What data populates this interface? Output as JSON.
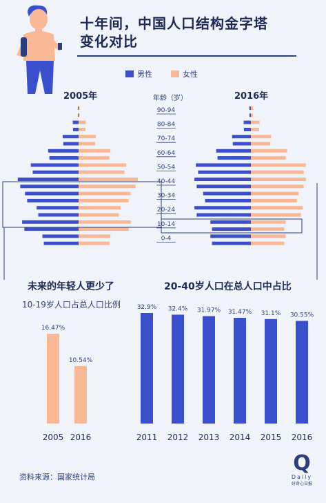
{
  "header": {
    "title_line1": "十年间，中国人口结构金字塔",
    "title_line2": "变化对比"
  },
  "legend": {
    "male": "男性",
    "female": "女性"
  },
  "colors": {
    "male": "#3a4fcb",
    "female": "#f8b896",
    "text": "#1d2a55",
    "background": "#f0f3fa"
  },
  "pyramid": {
    "left_year": "2005年",
    "right_year": "2016年",
    "age_header": "年龄（岁）"
  },
  "chart_data": [
    {
      "type": "bar",
      "orientation": "horizontal",
      "title": "2005年",
      "categories": [
        "90-94",
        "80-84",
        "70-74",
        "60-64",
        "50-54",
        "40-44",
        "30-34",
        "20-24",
        "10-14",
        "0-4"
      ],
      "series": [
        {
          "name": "男性",
          "values": [
            0.05,
            0.4,
            1.1,
            2.1,
            3.3,
            4.2,
            3.7,
            2.9,
            3.9,
            2.5
          ]
        },
        {
          "name": "女性",
          "values": [
            0.08,
            0.5,
            1.2,
            2.2,
            3.3,
            4.1,
            3.6,
            2.9,
            3.6,
            2.2
          ]
        }
      ]
    },
    {
      "type": "bar",
      "orientation": "horizontal",
      "title": "2016年",
      "categories": [
        "90-94",
        "80-84",
        "70-74",
        "60-64",
        "50-54",
        "40-44",
        "30-34",
        "20-24",
        "10-14",
        "0-4"
      ],
      "series": [
        {
          "name": "男性",
          "values": [
            0.1,
            0.5,
            1.3,
            2.4,
            3.8,
            3.9,
            3.3,
            3.9,
            2.8,
            2.8
          ]
        },
        {
          "name": "女性",
          "values": [
            0.15,
            0.6,
            1.4,
            2.5,
            3.8,
            3.8,
            3.3,
            3.6,
            2.4,
            2.4
          ]
        }
      ]
    },
    {
      "type": "bar",
      "title": "未来的年轻人更少了",
      "subtitle": "10-19岁人口占总人口比例",
      "categories": [
        "2005",
        "2016"
      ],
      "values": [
        16.47,
        10.54
      ],
      "value_labels": [
        "16.47%",
        "10.54%"
      ]
    },
    {
      "type": "bar",
      "title": "20-40岁人口在总人口中占比",
      "categories": [
        "2011",
        "2012",
        "2013",
        "2014",
        "2015",
        "2016"
      ],
      "values": [
        32.9,
        32.4,
        31.97,
        31.47,
        31.1,
        30.55
      ],
      "value_labels": [
        "32.9%",
        "32.4%",
        "31.97%",
        "31.47%",
        "31.1%",
        "30.55%"
      ]
    }
  ],
  "source": "资料来源：国家统计局",
  "logo": {
    "letter": "Q",
    "text": "Daily",
    "sub": "好奇心日报"
  }
}
